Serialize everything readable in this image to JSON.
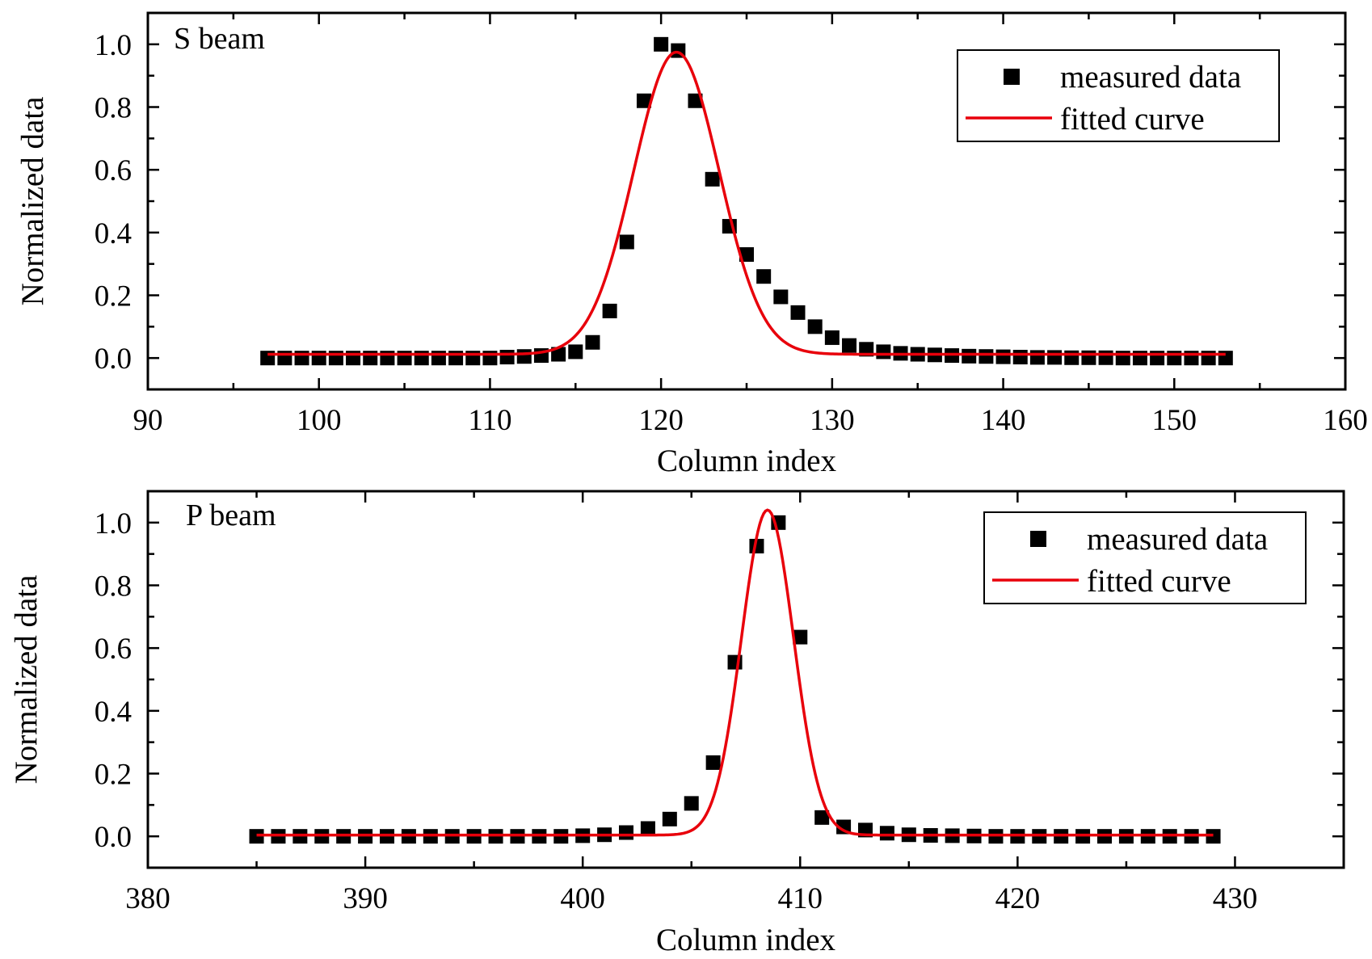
{
  "colors": {
    "data": "#000000",
    "fit": "#e8000b",
    "axis": "#000000",
    "background": "#ffffff"
  },
  "chart_data": [
    {
      "type": "scatter",
      "panel_label": "S beam",
      "xlabel": "Column index",
      "ylabel": "Normalized data",
      "xlim": [
        90,
        160
      ],
      "ylim": [
        -0.1,
        1.1
      ],
      "xticks": [
        90,
        100,
        110,
        120,
        130,
        140,
        150,
        160
      ],
      "yticks": [
        0.0,
        0.2,
        0.4,
        0.6,
        0.8,
        1.0
      ],
      "xtick_labels": [
        "90",
        "100",
        "110",
        "120",
        "130",
        "140",
        "150",
        "160"
      ],
      "ytick_labels": [
        "0.0",
        "0.2",
        "0.4",
        "0.6",
        "0.8",
        "1.0"
      ],
      "legend_position": "top-right",
      "legend": [
        "measured data",
        "fitted curve"
      ],
      "series": [
        {
          "name": "measured data",
          "kind": "markers",
          "x": [
            97,
            98,
            99,
            100,
            101,
            102,
            103,
            104,
            105,
            106,
            107,
            108,
            109,
            110,
            111,
            112,
            113,
            114,
            115,
            116,
            117,
            118,
            119,
            120,
            121,
            122,
            123,
            124,
            125,
            126,
            127,
            128,
            129,
            130,
            131,
            132,
            133,
            134,
            135,
            136,
            137,
            138,
            139,
            140,
            141,
            142,
            143,
            144,
            145,
            146,
            147,
            148,
            149,
            150,
            151,
            152,
            153
          ],
          "y": [
            0.0,
            0.0,
            0.0,
            0.0,
            0.0,
            0.0,
            0.0,
            0.0,
            0.0,
            0.0,
            0.0,
            0.0,
            0.0,
            0.0,
            0.003,
            0.005,
            0.008,
            0.012,
            0.02,
            0.05,
            0.15,
            0.37,
            0.82,
            1.0,
            0.98,
            0.82,
            0.57,
            0.42,
            0.33,
            0.26,
            0.195,
            0.145,
            0.1,
            0.065,
            0.04,
            0.028,
            0.02,
            0.015,
            0.012,
            0.01,
            0.008,
            0.006,
            0.005,
            0.004,
            0.003,
            0.002,
            0.002,
            0.001,
            0.001,
            0.001,
            0.0,
            0.0,
            0.0,
            0.0,
            0.0,
            0.0,
            0.0
          ]
        },
        {
          "name": "fitted curve",
          "kind": "gaussian",
          "x_range": [
            97,
            153
          ],
          "baseline": 0.012,
          "amplitude": 0.963,
          "center": 120.9,
          "sigma": 2.5
        }
      ]
    },
    {
      "type": "scatter",
      "panel_label": "P beam",
      "xlabel": "Column index",
      "ylabel": "Normalized data",
      "xlim": [
        380,
        435
      ],
      "ylim": [
        -0.1,
        1.1
      ],
      "xticks": [
        380,
        390,
        400,
        410,
        420,
        430
      ],
      "yticks": [
        0.0,
        0.2,
        0.4,
        0.6,
        0.8,
        1.0
      ],
      "xtick_labels": [
        "380",
        "390",
        "400",
        "410",
        "420",
        "430"
      ],
      "ytick_labels": [
        "0.0",
        "0.2",
        "0.4",
        "0.6",
        "0.8",
        "1.0"
      ],
      "legend_position": "top-right",
      "legend": [
        "measured data",
        "fitted curve"
      ],
      "series": [
        {
          "name": "measured data",
          "kind": "markers",
          "x": [
            385,
            386,
            387,
            388,
            389,
            390,
            391,
            392,
            393,
            394,
            395,
            396,
            397,
            398,
            399,
            400,
            401,
            402,
            403,
            404,
            405,
            406,
            407,
            408,
            409,
            410,
            411,
            412,
            413,
            414,
            415,
            416,
            417,
            418,
            419,
            420,
            421,
            422,
            423,
            424,
            425,
            426,
            427,
            428,
            429
          ],
          "y": [
            0.0,
            0.0,
            0.0,
            0.0,
            0.0,
            0.0,
            0.0,
            0.0,
            0.0,
            0.0,
            0.0,
            0.0,
            0.0,
            0.0,
            0.0,
            0.002,
            0.005,
            0.012,
            0.025,
            0.055,
            0.105,
            0.235,
            0.555,
            0.925,
            1.0,
            0.635,
            0.06,
            0.03,
            0.02,
            0.01,
            0.005,
            0.003,
            0.002,
            0.001,
            0.0,
            0.0,
            0.0,
            0.0,
            0.0,
            0.0,
            0.0,
            0.0,
            0.0,
            0.0,
            0.0
          ]
        },
        {
          "name": "fitted curve",
          "kind": "gaussian",
          "x_range": [
            385,
            429
          ],
          "baseline": 0.004,
          "amplitude": 1.036,
          "center": 408.5,
          "sigma": 1.2
        }
      ]
    }
  ]
}
